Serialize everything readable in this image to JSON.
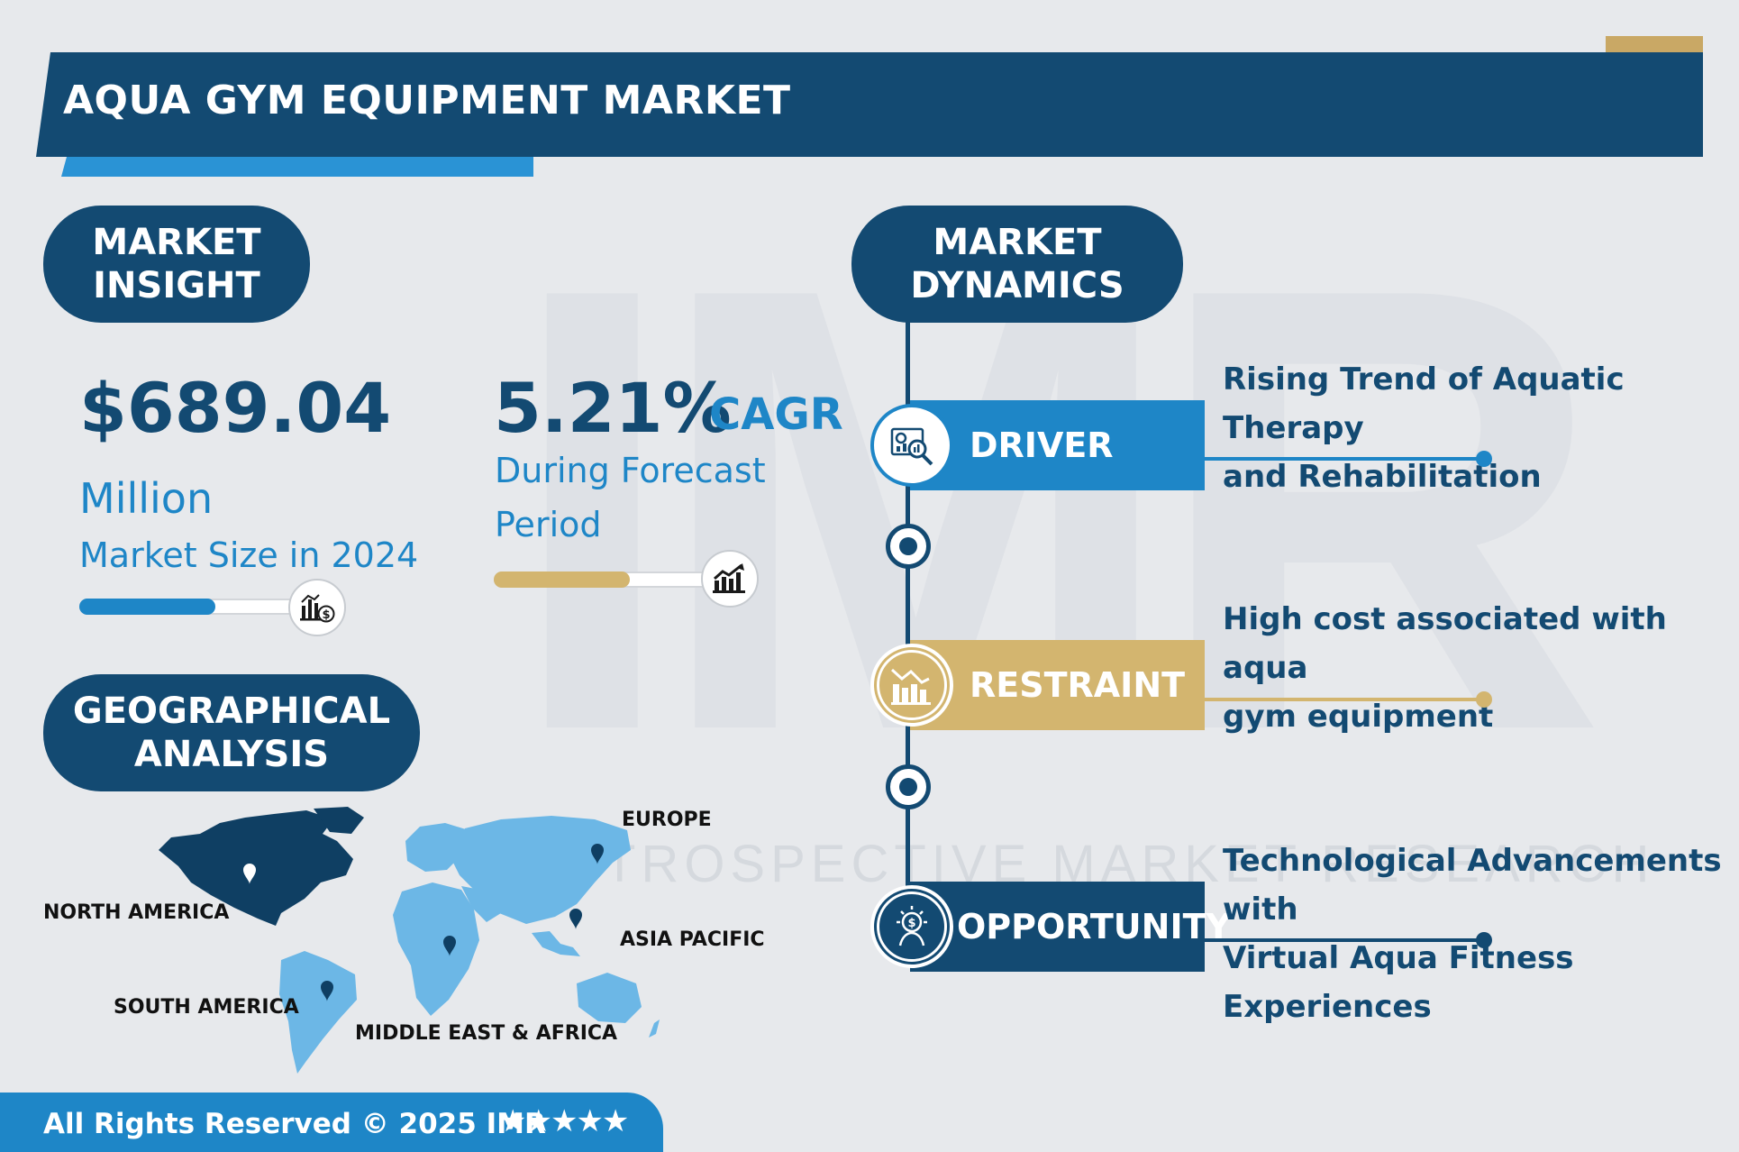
{
  "title": "AQUA GYM EQUIPMENT MARKET",
  "watermark": {
    "mark": "IMR",
    "subtitle": "INTROSPECTIVE MARKET RESEARCH"
  },
  "insight": {
    "heading_line1": "MARKET",
    "heading_line2": "INSIGHT",
    "market_size_value": "$689.04",
    "market_size_unit": "Million",
    "market_size_caption": "Market Size in 2024",
    "market_size_progress": 0.6,
    "cagr_value": "5.21%",
    "cagr_label": "CAGR",
    "cagr_caption_line1": "During Forecast",
    "cagr_caption_line2": "Period",
    "cagr_progress": 0.6,
    "market_size_icon": "bar-chart-dollar-icon",
    "cagr_icon": "trend-chart-icon"
  },
  "geography": {
    "heading_line1": "GEOGRAPHICAL",
    "heading_line2": "ANALYSIS",
    "regions": [
      "NORTH AMERICA",
      "EUROPE",
      "ASIA PACIFIC",
      "SOUTH AMERICA",
      "MIDDLE EAST & AFRICA"
    ]
  },
  "dynamics": {
    "heading_line1": "MARKET",
    "heading_line2": "DYNAMICS",
    "items": [
      {
        "label": "DRIVER",
        "text_line1": "Rising Trend of Aquatic Therapy",
        "text_line2": "and Rehabilitation",
        "color": "#1e86c7",
        "icon": "analytics-magnifier-icon"
      },
      {
        "label": "RESTRAINT",
        "text_line1": "High cost associated with aqua",
        "text_line2": "gym equipment",
        "color": "#d3b56f",
        "icon": "declining-chart-icon"
      },
      {
        "label": "OPPORTUNITY",
        "text_line1": "Technological Advancements with",
        "text_line2": "Virtual Aqua Fitness Experiences",
        "color": "#134a72",
        "icon": "idea-dollar-icon"
      }
    ]
  },
  "footer": {
    "text": "All Rights Reserved © 2025 IMR",
    "stars": "★★★★★"
  },
  "colors": {
    "navy": "#134a72",
    "blue": "#1e86c7",
    "gold": "#d3b56f",
    "background": "#e7e9ec"
  }
}
